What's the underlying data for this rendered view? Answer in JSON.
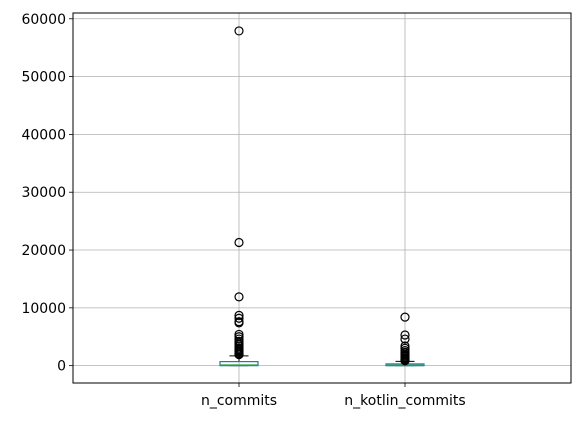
{
  "chart_data": {
    "type": "boxplot",
    "title": "",
    "xlabel": "",
    "ylabel": "",
    "ylim": [
      -3000,
      61000
    ],
    "yticks": [
      0,
      10000,
      20000,
      30000,
      40000,
      50000,
      60000
    ],
    "ytick_labels": [
      "0",
      "10000",
      "20000",
      "30000",
      "40000",
      "50000",
      "60000"
    ],
    "grid": true,
    "categories": [
      "n_commits",
      "n_kotlin_commits"
    ],
    "boxes": [
      {
        "name": "n_commits",
        "whisker_low": 0,
        "q1": 0,
        "median": 100,
        "q3": 700,
        "whisker_high": 1700,
        "outliers": [
          57900,
          21300,
          11900,
          8700,
          8200,
          7600,
          7400,
          5400,
          5000,
          4600,
          4200,
          3900,
          3600,
          3300,
          3000,
          2800,
          2600,
          2400,
          2200,
          2000,
          1900
        ]
      },
      {
        "name": "n_kotlin_commits",
        "whisker_low": 0,
        "q1": 0,
        "median": 40,
        "q3": 300,
        "whisker_high": 750,
        "outliers": [
          8400,
          5300,
          4600,
          3400,
          3000,
          2600,
          2300,
          2000,
          1800,
          1600,
          1400,
          1200,
          1050,
          950,
          850
        ]
      }
    ],
    "colors": {
      "box": "#1f77b4",
      "median": "#2ca02c",
      "whisker": "#000000",
      "grid": "#b0b0b0",
      "axes": "#000000"
    }
  }
}
